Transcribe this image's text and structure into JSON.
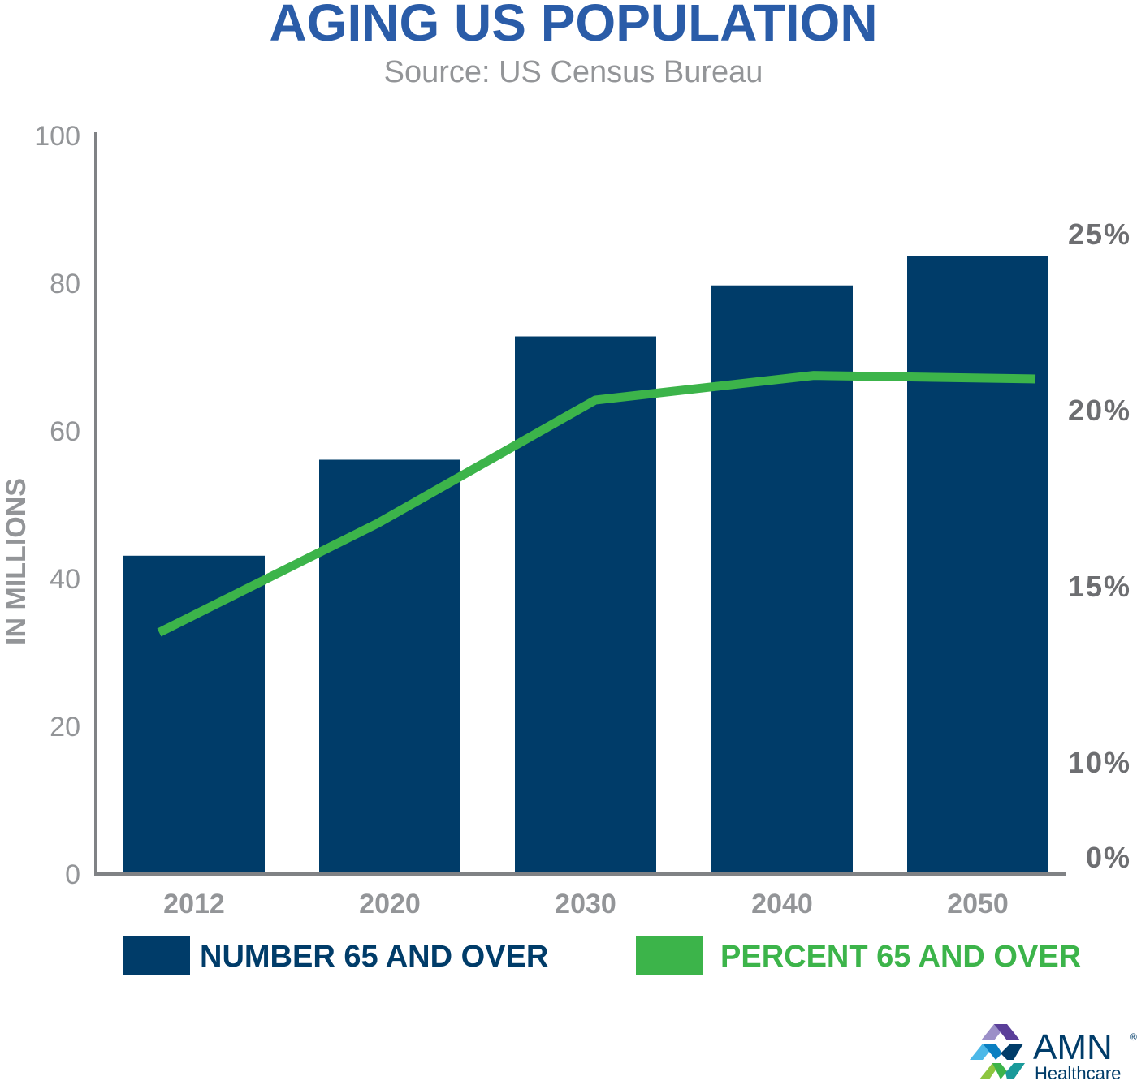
{
  "chart_data": {
    "type": "bar+line",
    "title": "AGING US POPULATION",
    "subtitle": "Source: US Census Bureau",
    "categories": [
      "2012",
      "2020",
      "2030",
      "2040",
      "2050"
    ],
    "series": [
      {
        "name": "NUMBER 65 AND OVER",
        "type": "bar",
        "axis": "left",
        "values": [
          43.1,
          56.1,
          72.8,
          79.7,
          83.7
        ],
        "color": "#003c69"
      },
      {
        "name": "PERCENT 65 AND OVER",
        "type": "line",
        "axis": "right",
        "values": [
          13.7,
          16.8,
          20.3,
          21.0,
          20.9
        ],
        "color": "#3cb44a"
      }
    ],
    "ylabel": "IN MILLIONS",
    "ylim": [
      0,
      100
    ],
    "yticks": [
      "0",
      "20",
      "40",
      "60",
      "80",
      "100"
    ],
    "y2ticks": [
      {
        "value": 0,
        "label": "0%"
      },
      {
        "value": 10,
        "label": "10%"
      },
      {
        "value": 15,
        "label": "15%"
      },
      {
        "value": 20,
        "label": "20%"
      },
      {
        "value": 25,
        "label": "25%"
      }
    ],
    "grid": false,
    "legend_position": "bottom"
  },
  "logo": {
    "name": "AMN",
    "sub": "Healthcare",
    "mark": "®"
  },
  "colors": {
    "title": "#2a5ca8",
    "axis": "#808285",
    "bar": "#003c69",
    "line": "#3cb44a"
  }
}
